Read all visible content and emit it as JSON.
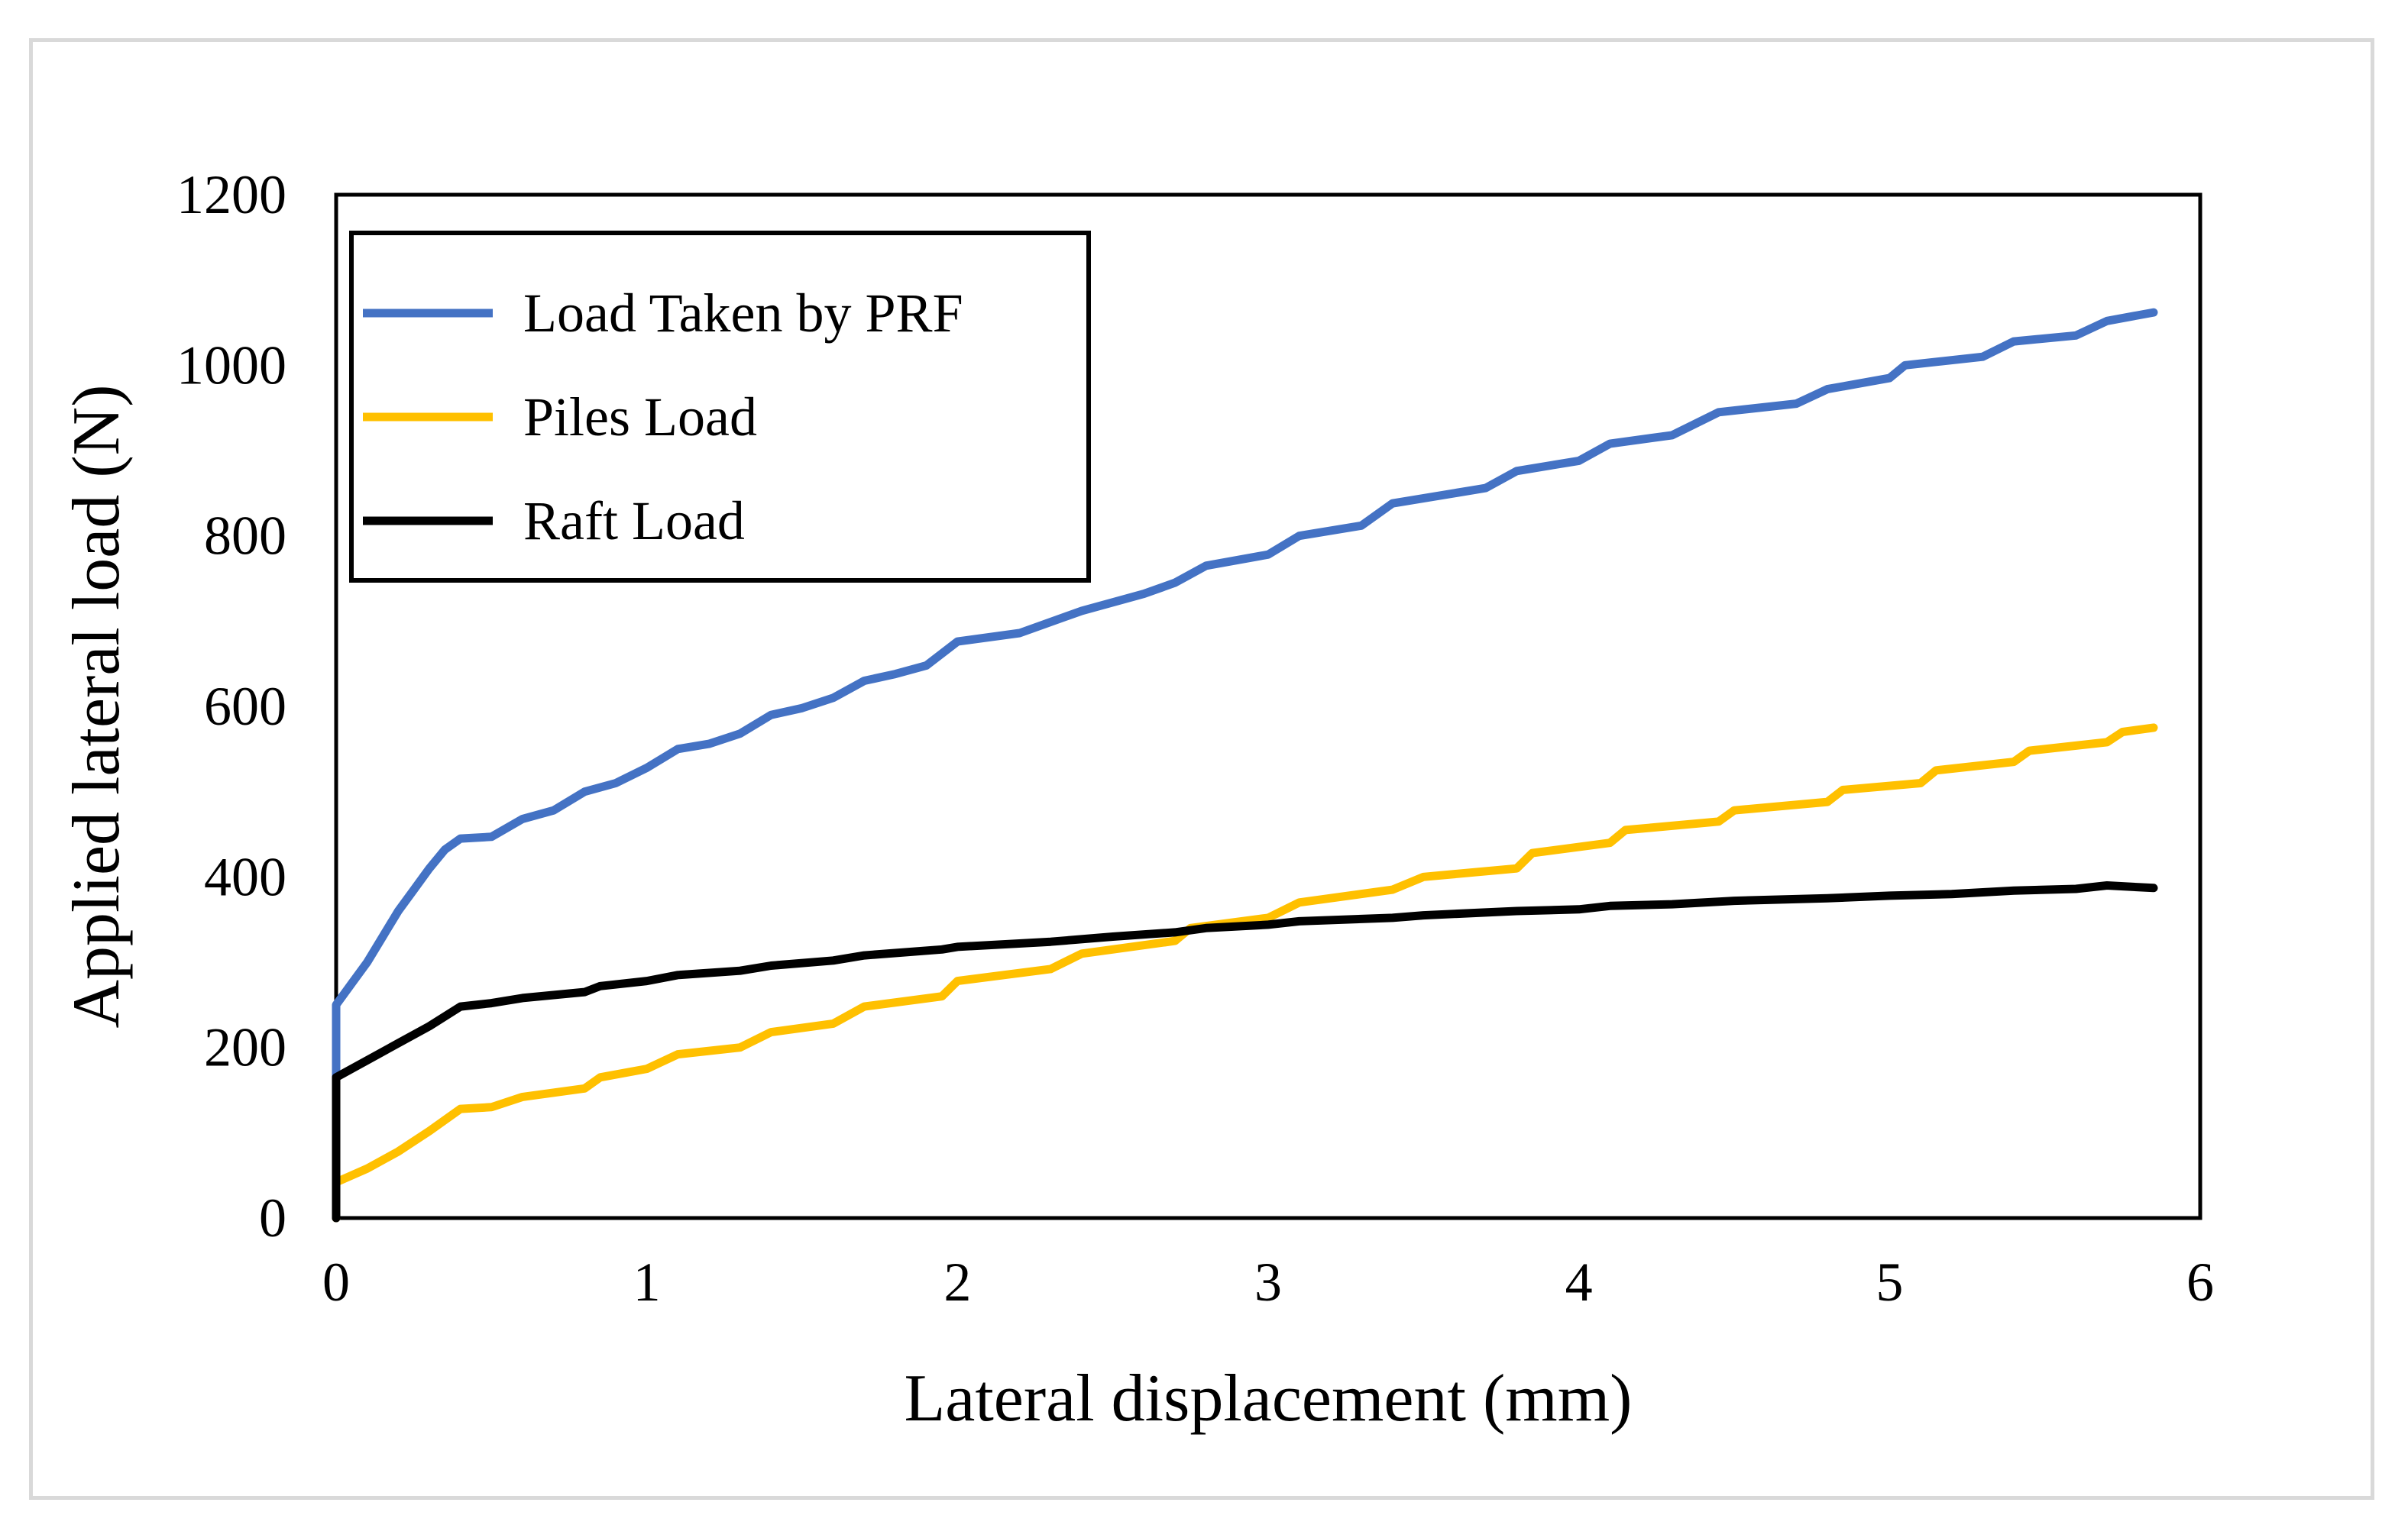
{
  "chart_data": {
    "type": "line",
    "title": "",
    "xlabel": "Lateral displacement (mm)",
    "ylabel": "Applied lateral load (N)",
    "xlim": [
      0,
      6
    ],
    "ylim": [
      0,
      1200
    ],
    "xticks": [
      0,
      1,
      2,
      3,
      4,
      5,
      6
    ],
    "yticks": [
      0,
      200,
      400,
      600,
      800,
      1000,
      1200
    ],
    "legend_position": "top-left",
    "series": [
      {
        "name": "Load Taken by PRF",
        "color": "#4472c4",
        "points": [
          [
            0,
            0
          ],
          [
            0,
            250
          ],
          [
            0.05,
            275
          ],
          [
            0.1,
            300
          ],
          [
            0.15,
            330
          ],
          [
            0.2,
            360
          ],
          [
            0.25,
            385
          ],
          [
            0.3,
            410
          ],
          [
            0.35,
            432
          ],
          [
            0.4,
            445
          ],
          [
            0.5,
            447
          ],
          [
            0.6,
            468
          ],
          [
            0.7,
            478
          ],
          [
            0.8,
            500
          ],
          [
            0.9,
            510
          ],
          [
            1.0,
            528
          ],
          [
            1.1,
            550
          ],
          [
            1.2,
            556
          ],
          [
            1.3,
            568
          ],
          [
            1.4,
            590
          ],
          [
            1.5,
            598
          ],
          [
            1.6,
            610
          ],
          [
            1.7,
            630
          ],
          [
            1.8,
            638
          ],
          [
            1.9,
            648
          ],
          [
            2.0,
            676
          ],
          [
            2.2,
            686
          ],
          [
            2.4,
            712
          ],
          [
            2.6,
            732
          ],
          [
            2.7,
            745
          ],
          [
            2.8,
            765
          ],
          [
            3.0,
            778
          ],
          [
            3.1,
            800
          ],
          [
            3.3,
            812
          ],
          [
            3.4,
            838
          ],
          [
            3.6,
            850
          ],
          [
            3.7,
            856
          ],
          [
            3.8,
            876
          ],
          [
            4.0,
            888
          ],
          [
            4.1,
            908
          ],
          [
            4.3,
            918
          ],
          [
            4.45,
            945
          ],
          [
            4.7,
            955
          ],
          [
            4.8,
            972
          ],
          [
            5.0,
            985
          ],
          [
            5.05,
            1000
          ],
          [
            5.3,
            1010
          ],
          [
            5.4,
            1028
          ],
          [
            5.6,
            1035
          ],
          [
            5.7,
            1052
          ],
          [
            5.85,
            1062
          ]
        ]
      },
      {
        "name": "Piles Load",
        "color": "#ffc000",
        "points": [
          [
            0,
            0
          ],
          [
            0,
            42
          ],
          [
            0.1,
            58
          ],
          [
            0.2,
            78
          ],
          [
            0.3,
            102
          ],
          [
            0.4,
            128
          ],
          [
            0.5,
            130
          ],
          [
            0.6,
            142
          ],
          [
            0.8,
            152
          ],
          [
            0.85,
            165
          ],
          [
            1.0,
            175
          ],
          [
            1.1,
            192
          ],
          [
            1.3,
            200
          ],
          [
            1.4,
            218
          ],
          [
            1.6,
            228
          ],
          [
            1.7,
            248
          ],
          [
            1.95,
            260
          ],
          [
            2.0,
            278
          ],
          [
            2.3,
            292
          ],
          [
            2.4,
            310
          ],
          [
            2.7,
            325
          ],
          [
            2.75,
            340
          ],
          [
            3.0,
            352
          ],
          [
            3.1,
            370
          ],
          [
            3.4,
            385
          ],
          [
            3.5,
            400
          ],
          [
            3.8,
            410
          ],
          [
            3.85,
            428
          ],
          [
            4.1,
            440
          ],
          [
            4.15,
            455
          ],
          [
            4.45,
            465
          ],
          [
            4.5,
            478
          ],
          [
            4.8,
            488
          ],
          [
            4.85,
            502
          ],
          [
            5.1,
            510
          ],
          [
            5.15,
            525
          ],
          [
            5.4,
            535
          ],
          [
            5.45,
            548
          ],
          [
            5.7,
            558
          ],
          [
            5.75,
            570
          ],
          [
            5.85,
            575
          ]
        ]
      },
      {
        "name": "Raft Load",
        "color": "#000000",
        "points": [
          [
            0,
            0
          ],
          [
            0,
            165
          ],
          [
            0.1,
            185
          ],
          [
            0.2,
            205
          ],
          [
            0.3,
            225
          ],
          [
            0.4,
            248
          ],
          [
            0.5,
            252
          ],
          [
            0.6,
            258
          ],
          [
            0.8,
            265
          ],
          [
            0.85,
            272
          ],
          [
            1.0,
            278
          ],
          [
            1.1,
            285
          ],
          [
            1.3,
            290
          ],
          [
            1.4,
            296
          ],
          [
            1.6,
            302
          ],
          [
            1.7,
            308
          ],
          [
            1.95,
            315
          ],
          [
            2.0,
            318
          ],
          [
            2.3,
            324
          ],
          [
            2.5,
            330
          ],
          [
            2.7,
            335
          ],
          [
            2.8,
            340
          ],
          [
            3.0,
            344
          ],
          [
            3.1,
            348
          ],
          [
            3.4,
            352
          ],
          [
            3.5,
            355
          ],
          [
            3.8,
            360
          ],
          [
            4.0,
            362
          ],
          [
            4.1,
            366
          ],
          [
            4.3,
            368
          ],
          [
            4.5,
            372
          ],
          [
            4.8,
            375
          ],
          [
            5.0,
            378
          ],
          [
            5.2,
            380
          ],
          [
            5.4,
            384
          ],
          [
            5.6,
            386
          ],
          [
            5.7,
            390
          ],
          [
            5.85,
            387
          ]
        ]
      }
    ]
  }
}
